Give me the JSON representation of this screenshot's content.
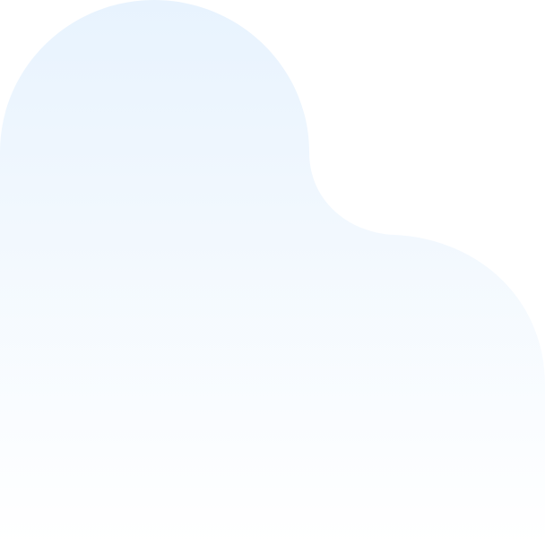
{
  "background": {
    "page_color": "#ffffff",
    "shape": {
      "name": "decorative-blob",
      "gradient_top_color": "#e8f3fe",
      "gradient_bottom_color": "#ffffff"
    }
  }
}
